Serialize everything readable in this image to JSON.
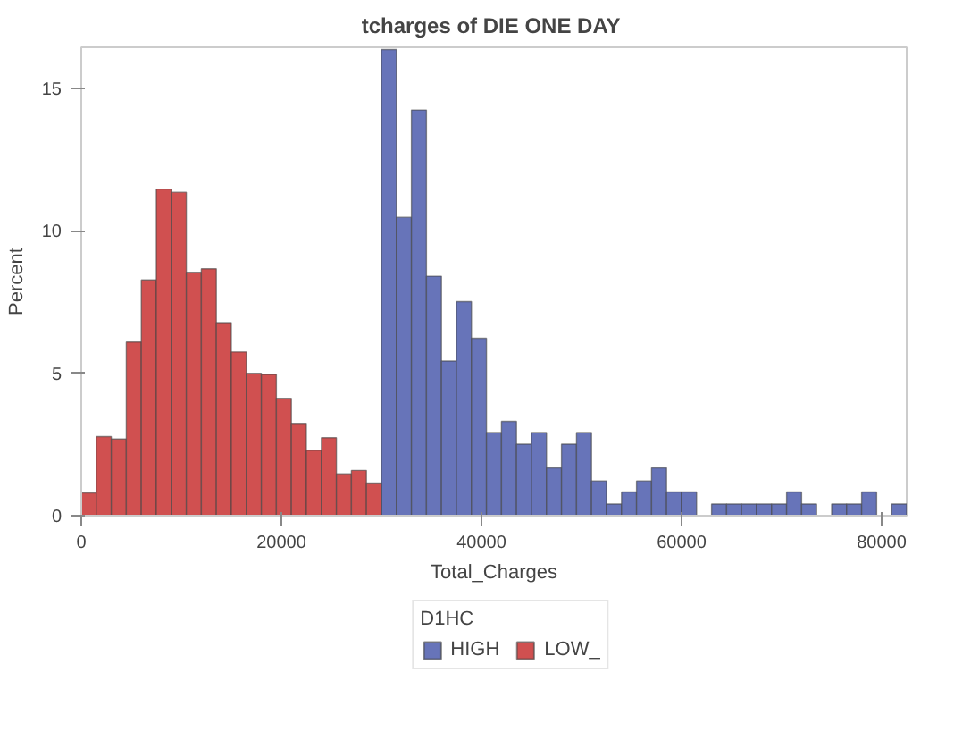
{
  "chart_data": {
    "type": "histogram",
    "title": "tcharges of  DIE ONE DAY",
    "xlabel": "Total_Charges",
    "ylabel": "Percent",
    "legend_title": "D1HC",
    "legend": "bottom",
    "grid": false,
    "xlim": [
      0,
      82500
    ],
    "xticks": [
      0,
      20000,
      40000,
      60000,
      80000
    ],
    "ylim": [
      0,
      16.45
    ],
    "yticks": [
      0,
      5,
      10,
      15
    ],
    "bins": [
      0,
      1500,
      3000,
      4500,
      6000,
      7500,
      9000,
      10500,
      12000,
      13500,
      15000,
      16500,
      18000,
      19500,
      21000,
      22500,
      24000,
      25500,
      27000,
      28500,
      30000,
      31500,
      33000,
      34500,
      36000,
      37500,
      39000,
      40500,
      42000,
      43500,
      45000,
      46500,
      48000,
      49500,
      51000,
      52500,
      54000,
      55500,
      57000,
      58500,
      60000,
      61500,
      63000,
      64500,
      66000,
      67500,
      69000,
      70500,
      72000,
      73500,
      75000,
      76500,
      78000,
      79500,
      81000,
      82500
    ],
    "series": [
      {
        "name": "HIGH",
        "color": "#6774b9",
        "values": [
          null,
          null,
          null,
          null,
          null,
          null,
          null,
          null,
          null,
          null,
          null,
          null,
          null,
          null,
          null,
          null,
          null,
          null,
          null,
          null,
          16.37,
          10.48,
          14.25,
          8.41,
          5.43,
          7.52,
          6.23,
          2.92,
          3.31,
          2.51,
          2.92,
          1.68,
          2.51,
          2.92,
          1.22,
          0.41,
          0.83,
          1.22,
          1.68,
          0.83,
          0.83,
          0,
          0.41,
          0.41,
          0.41,
          0.41,
          0.41,
          0.83,
          0.41,
          0,
          0.41,
          0.41,
          0.83,
          0,
          0.41
        ]
      },
      {
        "name": "LOW_",
        "color": "#d05050",
        "values": [
          0.8,
          2.78,
          2.69,
          6.1,
          8.28,
          11.47,
          11.36,
          8.55,
          8.67,
          6.78,
          5.75,
          5.0,
          4.96,
          4.12,
          3.24,
          2.3,
          2.74,
          1.47,
          1.59,
          1.15,
          null,
          null,
          null,
          null,
          null,
          null,
          null,
          null,
          null,
          null,
          null,
          null,
          null,
          null,
          null,
          null,
          null,
          null,
          null,
          null,
          null,
          null,
          null,
          null,
          null,
          null,
          null,
          null,
          null,
          null,
          null,
          null,
          null,
          null,
          null
        ]
      }
    ]
  }
}
